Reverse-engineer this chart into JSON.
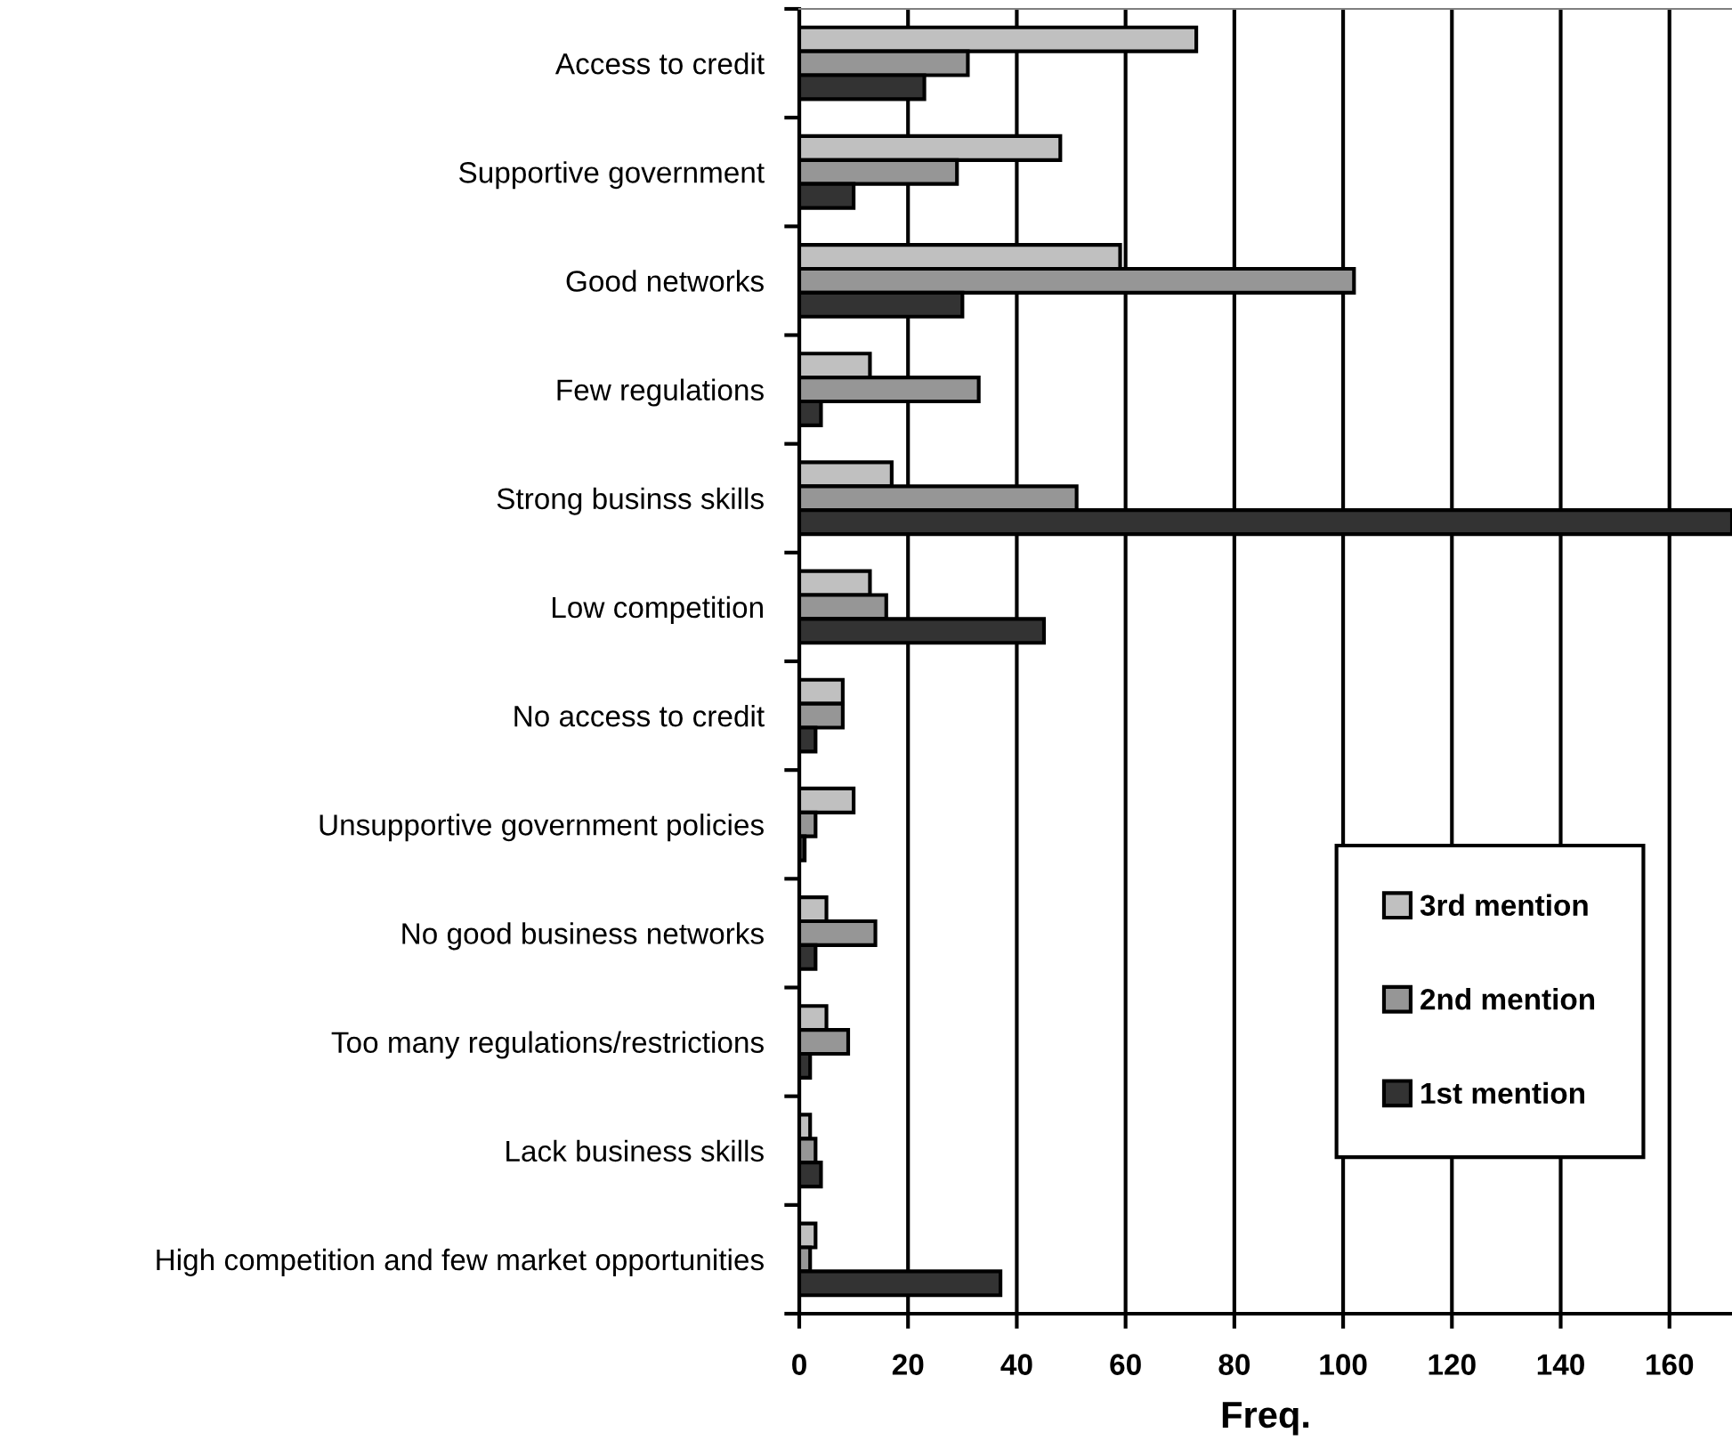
{
  "chart_data": {
    "type": "bar",
    "orientation": "horizontal",
    "xlabel": "Freq.",
    "categories": [
      "Access to credit",
      "Supportive government",
      "Good networks",
      "Few regulations",
      "Strong businss skills",
      "Low competition",
      "No access to credit",
      "Unsupportive government policies",
      "No good business networks",
      "Too many regulations/restrictions",
      "Lack business skills",
      "High competition and few market opportunities"
    ],
    "series": [
      {
        "name": "3rd mention",
        "color": "#c0c0c0",
        "values": [
          73,
          48,
          59,
          13,
          17,
          13,
          8,
          10,
          5,
          5,
          2,
          3
        ]
      },
      {
        "name": "2nd mention",
        "color": "#969696",
        "values": [
          31,
          29,
          102,
          33,
          51,
          16,
          8,
          3,
          14,
          9,
          3,
          2
        ]
      },
      {
        "name": "1st mention",
        "color": "#333333",
        "values": [
          23,
          10,
          30,
          4,
          171.5,
          45,
          3,
          1,
          3,
          2,
          4,
          37
        ]
      }
    ],
    "xlim": [
      0,
      171.5
    ],
    "xticks": [
      0,
      20,
      40,
      60,
      80,
      100,
      120,
      140,
      160
    ],
    "grid": "x",
    "legend": "bottom right"
  }
}
